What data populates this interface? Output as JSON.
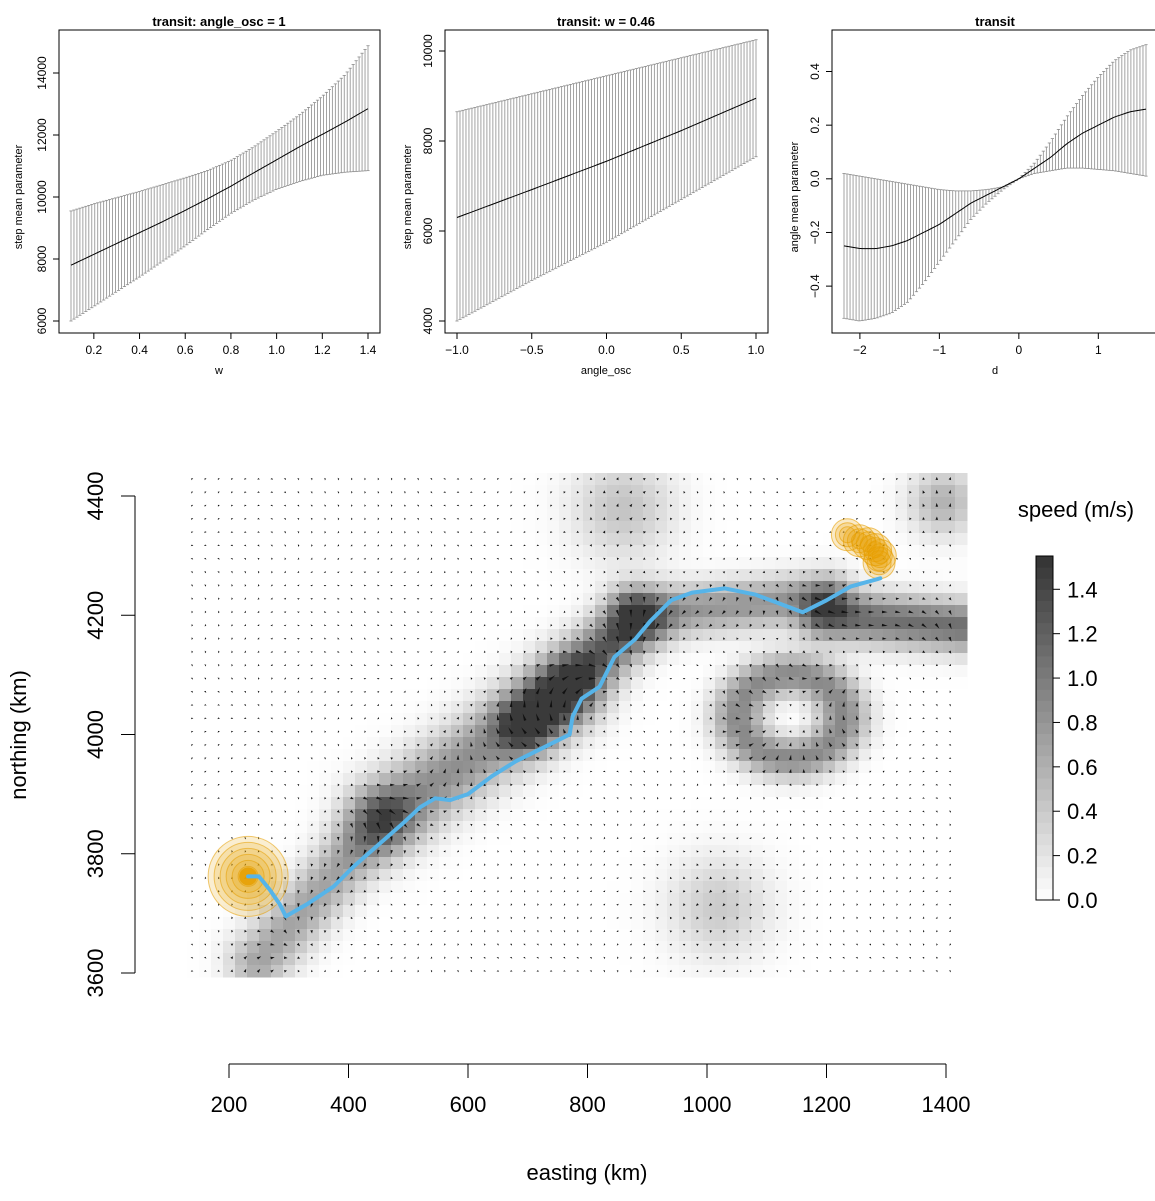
{
  "chart_data": [
    {
      "type": "line",
      "title": "transit: angle_osc = 1",
      "xlabel": "w",
      "ylabel": "step mean parameter",
      "xlim": [
        0.1,
        1.4
      ],
      "ylim": [
        6000,
        15000
      ],
      "xticks": [
        "0.2",
        "0.4",
        "0.6",
        "0.8",
        "1.0",
        "1.2",
        "1.4"
      ],
      "yticks": [
        "6000",
        "8000",
        "10000",
        "12000",
        "14000"
      ],
      "x": [
        0.1,
        0.2,
        0.3,
        0.4,
        0.5,
        0.6,
        0.7,
        0.8,
        0.9,
        1.0,
        1.1,
        1.2,
        1.3,
        1.4
      ],
      "series": [
        {
          "role": "mean",
          "values": [
            7800,
            8150,
            8500,
            8850,
            9200,
            9570,
            9950,
            10350,
            10780,
            11200,
            11620,
            12020,
            12420,
            12850
          ]
        },
        {
          "role": "upper",
          "values": [
            9550,
            9780,
            9980,
            10180,
            10400,
            10620,
            10860,
            11180,
            11620,
            12120,
            12650,
            13250,
            13950,
            14880
          ]
        },
        {
          "role": "lower",
          "values": [
            6000,
            6470,
            6950,
            7420,
            7920,
            8420,
            8960,
            9470,
            9900,
            10250,
            10500,
            10700,
            10800,
            10850
          ]
        }
      ],
      "error_bars": true
    },
    {
      "type": "line",
      "title": "transit: w = 0.46",
      "xlabel": "angle_osc",
      "ylabel": "step mean parameter",
      "xlim": [
        -1.0,
        1.0
      ],
      "ylim": [
        4000,
        10200
      ],
      "xticks": [
        "−1.0",
        "−0.5",
        "0.0",
        "0.5",
        "1.0"
      ],
      "yticks": [
        "4000",
        "6000",
        "8000",
        "10000"
      ],
      "x": [
        -1.0,
        -0.5,
        0.0,
        0.5,
        1.0
      ],
      "series": [
        {
          "role": "mean",
          "values": [
            6300,
            6920,
            7550,
            8230,
            8950
          ]
        },
        {
          "role": "upper",
          "values": [
            8650,
            9050,
            9450,
            9850,
            10250
          ]
        },
        {
          "role": "lower",
          "values": [
            4000,
            4900,
            5750,
            6700,
            7650
          ]
        }
      ],
      "error_bars": true
    },
    {
      "type": "line",
      "title": "transit",
      "xlabel": "d",
      "ylabel": "angle mean parameter",
      "xlim": [
        -2.2,
        1.6
      ],
      "ylim": [
        -0.53,
        0.51
      ],
      "xticks": [
        "−2",
        "−1",
        "0",
        "1"
      ],
      "yticks": [
        "−0.4",
        "−0.2",
        "0.0",
        "0.2",
        "0.4"
      ],
      "x": [
        -2.2,
        -2.0,
        -1.8,
        -1.6,
        -1.4,
        -1.2,
        -1.0,
        -0.8,
        -0.6,
        -0.4,
        -0.2,
        0.0,
        0.2,
        0.4,
        0.6,
        0.8,
        1.0,
        1.2,
        1.4,
        1.6
      ],
      "series": [
        {
          "role": "mean",
          "values": [
            -0.25,
            -0.26,
            -0.26,
            -0.25,
            -0.23,
            -0.2,
            -0.17,
            -0.13,
            -0.09,
            -0.06,
            -0.03,
            0.0,
            0.04,
            0.08,
            0.13,
            0.17,
            0.2,
            0.23,
            0.25,
            0.26
          ]
        },
        {
          "role": "upper",
          "values": [
            0.02,
            0.01,
            0.0,
            -0.01,
            -0.02,
            -0.03,
            -0.04,
            -0.045,
            -0.045,
            -0.04,
            -0.03,
            0.0,
            0.06,
            0.14,
            0.23,
            0.31,
            0.38,
            0.44,
            0.48,
            0.5
          ]
        },
        {
          "role": "lower",
          "values": [
            -0.52,
            -0.53,
            -0.52,
            -0.5,
            -0.46,
            -0.39,
            -0.31,
            -0.23,
            -0.15,
            -0.09,
            -0.04,
            0.0,
            0.02,
            0.03,
            0.04,
            0.04,
            0.035,
            0.03,
            0.02,
            0.01
          ]
        }
      ],
      "error_bars": true
    },
    {
      "type": "heatmap",
      "xlabel": "easting (km)",
      "ylabel": "northing (km)",
      "xlim": [
        140,
        1440
      ],
      "ylim": [
        3600,
        4440
      ],
      "xticks": [
        "200",
        "400",
        "600",
        "800",
        "1000",
        "1200",
        "1400"
      ],
      "yticks": [
        "3600",
        "3800",
        "4000",
        "4200",
        "4400"
      ],
      "colorbar": {
        "label": "speed (m/s)",
        "range": [
          0.0,
          1.55
        ],
        "ticks": [
          "0.0",
          "0.2",
          "0.4",
          "0.6",
          "0.8",
          "1.0",
          "1.2",
          "1.4"
        ],
        "colors": [
          "#ffffff",
          "#333333"
        ]
      },
      "arrow_field": true,
      "track": {
        "color": "#56b4e9",
        "points": [
          [
            232,
            3762
          ],
          [
            250,
            3762
          ],
          [
            268,
            3740
          ],
          [
            285,
            3715
          ],
          [
            295,
            3695
          ],
          [
            330,
            3715
          ],
          [
            375,
            3745
          ],
          [
            410,
            3780
          ],
          [
            450,
            3815
          ],
          [
            490,
            3850
          ],
          [
            520,
            3878
          ],
          [
            545,
            3893
          ],
          [
            570,
            3890
          ],
          [
            600,
            3900
          ],
          [
            640,
            3930
          ],
          [
            680,
            3955
          ],
          [
            720,
            3975
          ],
          [
            770,
            4000
          ],
          [
            775,
            4030
          ],
          [
            790,
            4060
          ],
          [
            820,
            4080
          ],
          [
            845,
            4130
          ],
          [
            880,
            4160
          ],
          [
            905,
            4190
          ],
          [
            940,
            4225
          ],
          [
            975,
            4238
          ],
          [
            1030,
            4245
          ],
          [
            1080,
            4235
          ],
          [
            1120,
            4220
          ],
          [
            1160,
            4205
          ],
          [
            1200,
            4225
          ],
          [
            1240,
            4248
          ],
          [
            1290,
            4262
          ]
        ]
      },
      "residence_circles": [
        {
          "color": "#e69f00",
          "center": [
            232,
            3762
          ]
        },
        {
          "color": "#e69f00",
          "center": [
            1275,
            4320
          ]
        }
      ]
    }
  ]
}
